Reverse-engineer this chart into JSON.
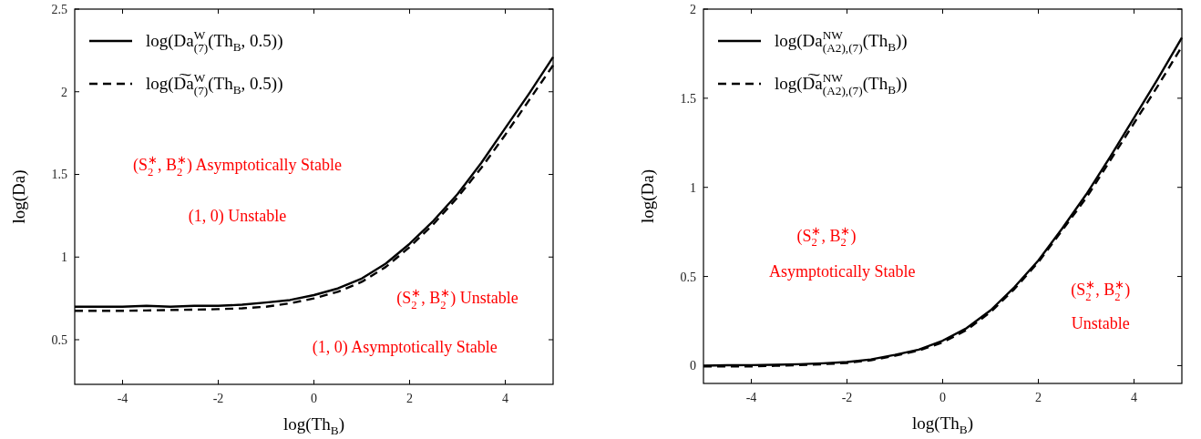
{
  "chart_data": [
    {
      "type": "line",
      "xlabel": "log(Th$_{B}$)",
      "ylabel": "log(Da)",
      "xlim": [
        -5,
        5
      ],
      "xticks": [
        -4,
        -2,
        0,
        2,
        4
      ],
      "ylim": [
        0.23,
        2.5
      ],
      "yticks": [
        0.5,
        1,
        1.5,
        2,
        2.5
      ],
      "legend": "top left",
      "grid": false,
      "x": [
        -5,
        -4.5,
        -4,
        -3.5,
        -3,
        -2.5,
        -2,
        -1.5,
        -1,
        -0.5,
        0,
        0.5,
        1,
        1.5,
        2,
        2.5,
        3,
        3.5,
        4,
        4.5,
        5
      ],
      "series": [
        {
          "name": "log(Da$^{W}$$_{(7)}$(Th$_{B}$, 0.5))",
          "color": "#000000",
          "line_style": "solid",
          "values": [
            0.7,
            0.7,
            0.7,
            0.705,
            0.7,
            0.705,
            0.705,
            0.712,
            0.725,
            0.74,
            0.77,
            0.81,
            0.87,
            0.96,
            1.08,
            1.22,
            1.38,
            1.57,
            1.78,
            1.99,
            2.21
          ]
        },
        {
          "name": "log(D͠a$^{W}$$_{(7)}$(Th$_{B}$, 0.5))",
          "color": "#000000",
          "line_style": "dashed",
          "values": [
            0.675,
            0.675,
            0.675,
            0.677,
            0.68,
            0.682,
            0.685,
            0.69,
            0.7,
            0.72,
            0.75,
            0.79,
            0.85,
            0.94,
            1.06,
            1.2,
            1.36,
            1.54,
            1.74,
            1.95,
            2.16
          ]
        }
      ],
      "annotations": [
        "(S$^{∗}$$_{2}$, B$^{∗}$$_{2}$) Asymptotically Stable",
        "(1, 0) Unstable",
        "(S$^{∗}$$_{2}$, B$^{∗}$$_{2}$) Unstable",
        "(1, 0) Asymptotically Stable"
      ]
    },
    {
      "type": "line",
      "xlabel": "log(Th$_{B}$)",
      "ylabel": "log(Da)",
      "xlim": [
        -5,
        5
      ],
      "xticks": [
        -4,
        -2,
        0,
        2,
        4
      ],
      "ylim": [
        -0.1,
        2
      ],
      "yticks": [
        0,
        0.5,
        1,
        1.5,
        2
      ],
      "legend": "top left",
      "grid": false,
      "x": [
        -5,
        -4.5,
        -4,
        -3.5,
        -3,
        -2.5,
        -2,
        -1.5,
        -1,
        -0.5,
        0,
        0.5,
        1,
        1.5,
        2,
        2.5,
        3,
        3.5,
        4,
        4.5,
        5
      ],
      "series": [
        {
          "name": "log(Da$^{NW}$$_{(A2),(7)}$(Th$_{B}$))",
          "color": "#000000",
          "line_style": "solid",
          "values": [
            0,
            0.002,
            0.003,
            0.005,
            0.008,
            0.013,
            0.02,
            0.035,
            0.06,
            0.09,
            0.14,
            0.21,
            0.31,
            0.44,
            0.59,
            0.77,
            0.96,
            1.17,
            1.39,
            1.61,
            1.84
          ]
        },
        {
          "name": "log(D͠a$^{NW}$$_{(A2),(7)}$(Th$_{B}$))",
          "color": "#000000",
          "line_style": "dashed",
          "values": [
            -0.005,
            -0.005,
            -0.004,
            -0.001,
            0.003,
            0.008,
            0.015,
            0.03,
            0.055,
            0.085,
            0.13,
            0.2,
            0.3,
            0.43,
            0.58,
            0.76,
            0.94,
            1.15,
            1.36,
            1.57,
            1.79
          ]
        }
      ],
      "annotations": [
        "(S$^{∗}$$_{2}$, B$^{∗}$$_{2}$)",
        "Asymptotically Stable",
        "(S$^{∗}$$_{2}$, B$^{∗}$$_{2}$)",
        "Unstable"
      ]
    }
  ]
}
